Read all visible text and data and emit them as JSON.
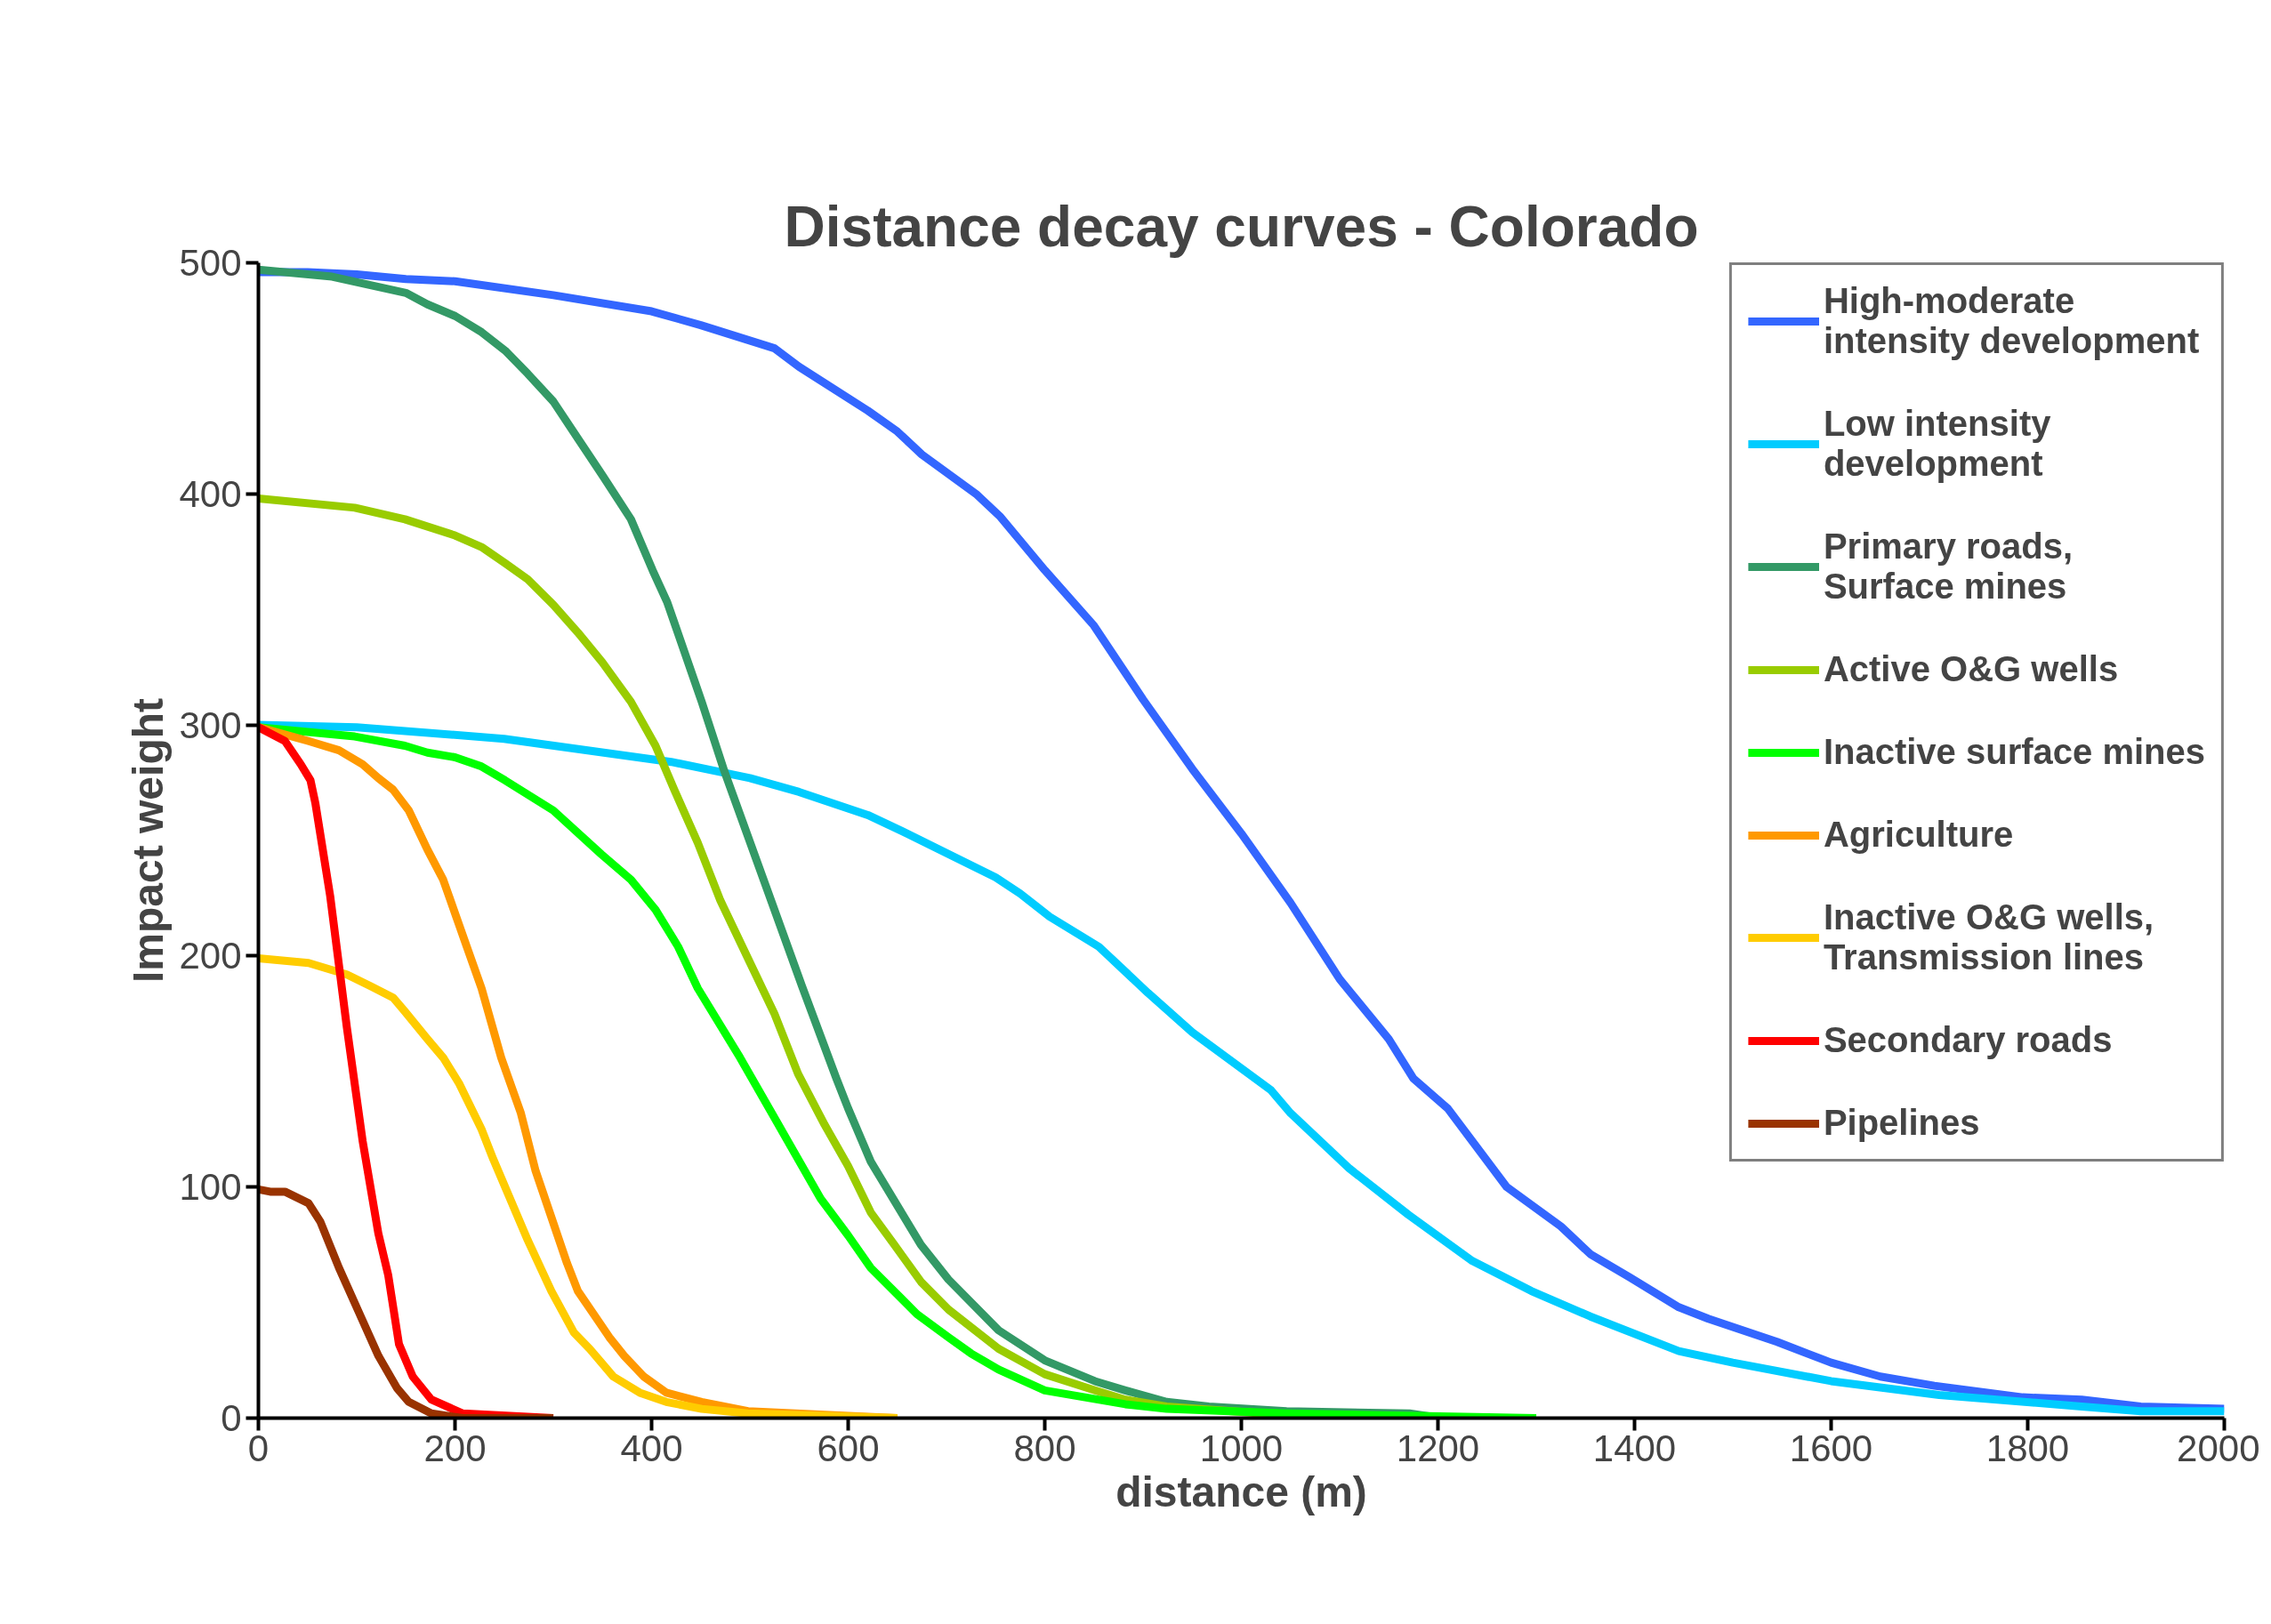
{
  "chart_data": {
    "type": "line",
    "title": "Distance decay curves - Colorado",
    "xlabel": "distance (m)",
    "ylabel": "Impact weight",
    "xlim": [
      0,
      2000
    ],
    "ylim": [
      0,
      500
    ],
    "xticks": [
      0,
      200,
      400,
      600,
      800,
      1000,
      1200,
      1400,
      1600,
      1800,
      2000
    ],
    "yticks": [
      0,
      100,
      200,
      300,
      400,
      500
    ],
    "grid": false,
    "legend": "top right",
    "marker": "none",
    "line_style": "solid",
    "series": [
      {
        "name": "High-moderate\nintensity development",
        "color": "#3366ff",
        "x": [
          0,
          50,
          100,
          150,
          200,
          300,
          400,
          450,
          525,
          550,
          620,
          650,
          675,
          730,
          755,
          800,
          850,
          900,
          950,
          1000,
          1050,
          1100,
          1150,
          1175,
          1210,
          1270,
          1325,
          1355,
          1395,
          1445,
          1475,
          1545,
          1600,
          1650,
          1705,
          1795,
          1855,
          1915,
          2000
        ],
        "values": [
          496,
          496,
          495,
          493,
          492,
          486,
          479,
          473,
          463,
          455,
          436,
          427,
          417,
          400,
          390,
          367,
          343,
          311,
          281,
          253,
          223,
          190,
          164,
          147,
          134,
          100,
          83,
          71,
          61,
          48,
          43,
          33,
          24,
          18,
          14,
          9,
          8,
          5,
          4
        ]
      },
      {
        "name": "Low intensity\ndevelopment",
        "color": "#00ccff",
        "x": [
          0,
          100,
          250,
          420,
          500,
          550,
          620,
          655,
          750,
          775,
          805,
          855,
          905,
          950,
          1030,
          1050,
          1110,
          1170,
          1235,
          1295,
          1355,
          1445,
          1500,
          1600,
          1710,
          1855,
          1915,
          2000
        ],
        "values": [
          300,
          299,
          294,
          284,
          277,
          271,
          261,
          254,
          234,
          227,
          217,
          204,
          184,
          167,
          142,
          132,
          108,
          88,
          68,
          55,
          44,
          29,
          24,
          16,
          10,
          5,
          3,
          3
        ]
      },
      {
        "name": "Primary roads,\nSurface mines",
        "color": "#339966",
        "x": [
          0,
          75,
          150,
          172,
          200,
          227,
          251,
          274,
          300,
          325,
          350,
          379,
          401,
          416,
          451,
          474,
          525,
          553,
          588,
          600,
          623,
          674,
          702,
          753,
          800,
          851,
          882,
          924,
          967,
          1046,
          1171,
          1203
        ],
        "values": [
          497,
          494,
          487,
          482,
          477,
          470,
          462,
          452,
          440,
          424,
          408,
          389,
          367,
          353,
          310,
          280,
          220,
          187,
          147,
          134,
          111,
          75,
          60,
          38,
          25,
          16,
          12,
          7,
          5,
          3,
          2,
          0
        ]
      },
      {
        "name": "Active O&G wells",
        "color": "#99cc00",
        "x": [
          0,
          98,
          149,
          200,
          227,
          251,
          274,
          300,
          325,
          350,
          379,
          404,
          423,
          447,
          470,
          498,
          525,
          549,
          576,
          600,
          623,
          647,
          674,
          702,
          753,
          800,
          851,
          882,
          924,
          1022,
          1100
        ],
        "values": [
          398,
          394,
          389,
          382,
          377,
          370,
          363,
          352,
          340,
          327,
          310,
          291,
          272,
          249,
          224,
          199,
          175,
          149,
          127,
          109,
          89,
          75,
          59,
          47,
          30,
          19,
          12,
          8,
          5,
          2,
          1
        ]
      },
      {
        "name": "Inactive surface mines",
        "color": "#00ff00",
        "x": [
          0,
          98,
          149,
          172,
          200,
          227,
          251,
          300,
          349,
          379,
          404,
          427,
          447,
          490,
          529,
          572,
          600,
          623,
          670,
          702,
          725,
          753,
          800,
          882,
          924,
          1046,
          1300
        ],
        "values": [
          299,
          295,
          291,
          288,
          286,
          282,
          276,
          263,
          244,
          233,
          220,
          204,
          186,
          156,
          127,
          95,
          79,
          65,
          45,
          35,
          28,
          21,
          12,
          6,
          4,
          2,
          0
        ]
      },
      {
        "name": "Agriculture",
        "color": "#ff9900",
        "x": [
          0,
          51,
          82,
          106,
          122,
          137,
          153,
          172,
          188,
          212,
          227,
          247,
          267,
          282,
          298,
          314,
          325,
          341,
          357,
          372,
          392,
          415,
          451,
          498,
          600,
          650
        ],
        "values": [
          299,
          293,
          289,
          283,
          277,
          272,
          263,
          246,
          233,
          204,
          186,
          156,
          132,
          107,
          87,
          67,
          55,
          45,
          35,
          27,
          18,
          11,
          7,
          3,
          1,
          0
        ]
      },
      {
        "name": "Inactive O&G wells,\nTransmission lines",
        "color": "#ffcc00",
        "x": [
          0,
          51,
          90,
          114,
          137,
          149,
          172,
          188,
          204,
          227,
          239,
          274,
          298,
          321,
          337,
          361,
          388,
          415,
          451,
          498,
          650
        ],
        "values": [
          199,
          197,
          192,
          187,
          182,
          176,
          164,
          156,
          145,
          125,
          112,
          77,
          55,
          37,
          30,
          18,
          11,
          7,
          4,
          2,
          0
        ]
      },
      {
        "name": "Secondary roads",
        "color": "#ff0000",
        "x": [
          0,
          27,
          43,
          53,
          58,
          73,
          90,
          106,
          122,
          132,
          143,
          157,
          176,
          208,
          300
        ],
        "values": [
          299,
          293,
          283,
          276,
          266,
          226,
          169,
          120,
          80,
          62,
          32,
          18,
          8,
          2,
          0
        ]
      },
      {
        "name": "Pipelines",
        "color": "#993300",
        "x": [
          0,
          12,
          27,
          51,
          63,
          82,
          102,
          122,
          141,
          153,
          176,
          208,
          300
        ],
        "values": [
          99,
          98,
          98,
          93,
          85,
          65,
          46,
          27,
          13,
          7,
          2,
          0,
          0
        ]
      }
    ]
  }
}
